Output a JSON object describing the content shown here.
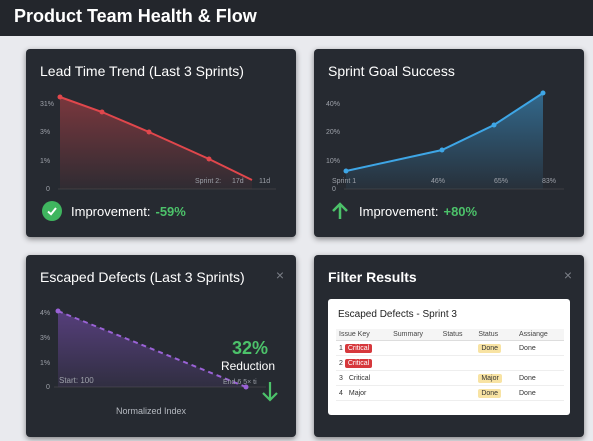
{
  "window": {
    "title": "Product Team Health & Flow"
  },
  "lead_time": {
    "title_bold": "Lead Time Trend",
    "title_rest": " (Last 3 Sprints)",
    "y_ticks": [
      "31%",
      "3%",
      "1%",
      "0"
    ],
    "x_labels": [
      "Sprint 2:",
      "17d",
      "11d"
    ],
    "footer_label": "Improvement:",
    "footer_value": "-59%",
    "line_color": "#e0474c"
  },
  "sprint_goal": {
    "title": "Sprint Goal Success",
    "y_ticks": [
      "40%",
      "20%",
      "10%",
      "0"
    ],
    "x_labels": [
      "Sprint 1",
      "46%",
      "65%",
      "83%"
    ],
    "footer_label": "Improvement:",
    "footer_value": "+80%",
    "line_color": "#3ea6e6"
  },
  "escaped_defects": {
    "title_bold": "Escaped Defects",
    "title_rest": " (Last 3 Sprints)",
    "close": "×",
    "y_ticks": [
      "4%",
      "3%",
      "1%",
      "0"
    ],
    "start_label": "Start: 100",
    "end_label": "End 6 5× ti",
    "x_axis_label": "Normalized Index",
    "reduction_value": "32%",
    "reduction_label": "Reduction",
    "line_color": "#9a62d6"
  },
  "filter_results": {
    "title": "Filter Results",
    "close": "×",
    "panel_title": "Escaped Defects - Sprint 3",
    "columns": [
      "Issue Key",
      "Summary",
      "Status",
      "Status",
      "Assiange"
    ],
    "rows": [
      {
        "key": "1",
        "severity": "Critical",
        "status": "Done",
        "assignee": "Done"
      },
      {
        "key": "2",
        "severity": "Critical",
        "status": "",
        "assignee": ""
      },
      {
        "key": "3",
        "severity": "Critical",
        "status": "Major",
        "assignee": "Done"
      },
      {
        "key": "4",
        "severity": "Major",
        "status": "Done",
        "assignee": "Done"
      }
    ]
  }
}
